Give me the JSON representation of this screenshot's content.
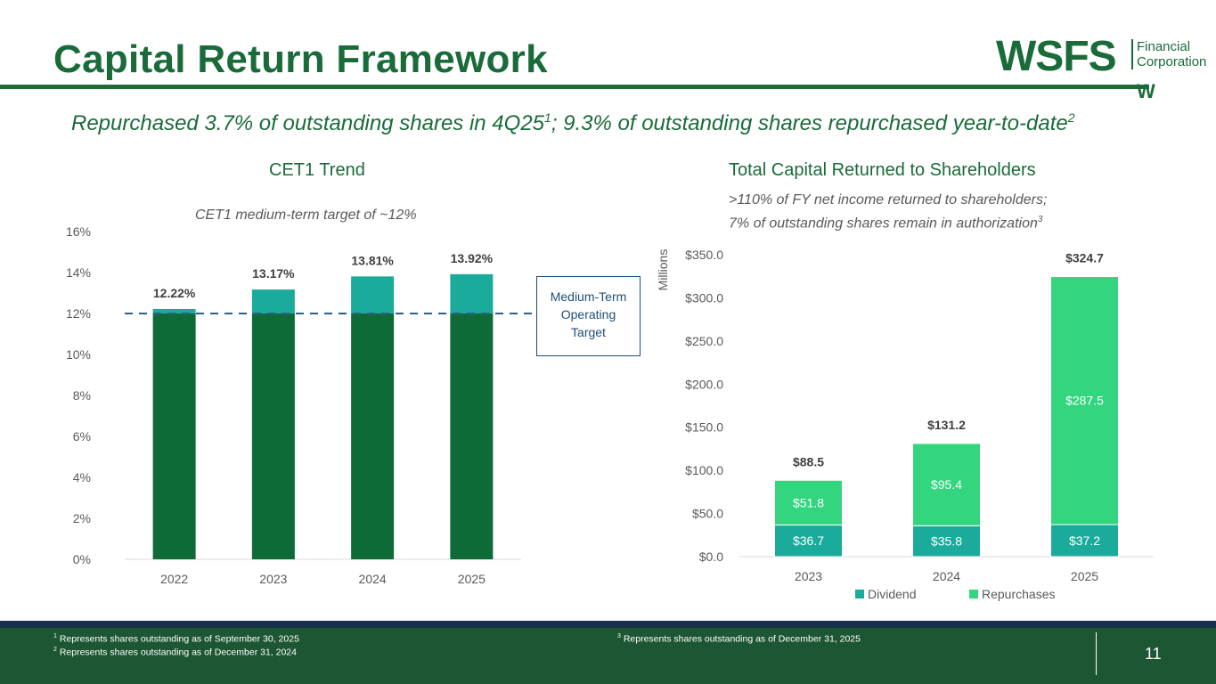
{
  "header": {
    "title": "Capital Return Framework",
    "logo_main": "WSFS",
    "logo_sub_1": "Financial",
    "logo_sub_2": "Corporation",
    "logo_mark": "W"
  },
  "subtitle": {
    "part1": "Repurchased 3.7% of outstanding shares in 4Q25",
    "sup1": "1",
    "part2": "; 9.3% of outstanding shares repurchased year-to-date",
    "sup2": "2"
  },
  "left_panel": {
    "title": "CET1 Trend",
    "note": "CET1 medium-term target of ~12%",
    "target_box": [
      "Medium-Term",
      "Operating",
      "Target"
    ]
  },
  "right_panel": {
    "title": "Total Capital Returned to Shareholders",
    "note_line1": ">110% of FY net income returned to shareholders;",
    "note_line2": "7% of outstanding shares remain in authorization",
    "note_sup": "3"
  },
  "chart_data": [
    {
      "type": "bar",
      "title": "CET1 Trend",
      "categories": [
        "2022",
        "2023",
        "2024",
        "2025"
      ],
      "values": [
        12.22,
        13.17,
        13.81,
        13.92
      ],
      "value_labels": [
        "12.22%",
        "13.17%",
        "13.81%",
        "13.92%"
      ],
      "ylim": [
        0,
        16
      ],
      "yticks": [
        "0%",
        "2%",
        "4%",
        "6%",
        "8%",
        "10%",
        "12%",
        "14%",
        "16%"
      ],
      "reference_line": 12,
      "colors": {
        "base": "#0e6b38",
        "above_target": "#1aab9b",
        "target_line": "#2e5f8a"
      }
    },
    {
      "type": "bar",
      "stacked": true,
      "title": "Total Capital Returned to Shareholders",
      "ylabel": "Millions",
      "categories": [
        "2023",
        "2024",
        "2025"
      ],
      "series": [
        {
          "name": "Dividend",
          "values": [
            36.7,
            35.8,
            37.2
          ],
          "labels": [
            "$36.7",
            "$35.8",
            "$37.2"
          ],
          "color": "#1aab9b"
        },
        {
          "name": "Repurchases",
          "values": [
            51.8,
            95.4,
            287.5
          ],
          "labels": [
            "$51.8",
            "$95.4",
            "$287.5"
          ],
          "color": "#33d67e"
        }
      ],
      "totals": [
        "$88.5",
        "$131.2",
        "$324.7"
      ],
      "total_values": [
        88.5,
        131.2,
        324.7
      ],
      "ylim": [
        0,
        350
      ],
      "yticks": [
        "$0.0",
        "$50.0",
        "$100.0",
        "$150.0",
        "$200.0",
        "$250.0",
        "$300.0",
        "$350.0"
      ],
      "legend": "bottom"
    }
  ],
  "footer": {
    "fn1_num": "1",
    "fn1": " Represents shares outstanding as of September 30, 2025",
    "fn2_num": "2",
    "fn2": " Represents shares outstanding as of December 31, 2024",
    "fn3_num": "3",
    "fn3": " Represents shares outstanding as of December 31, 2025",
    "page": "11"
  }
}
